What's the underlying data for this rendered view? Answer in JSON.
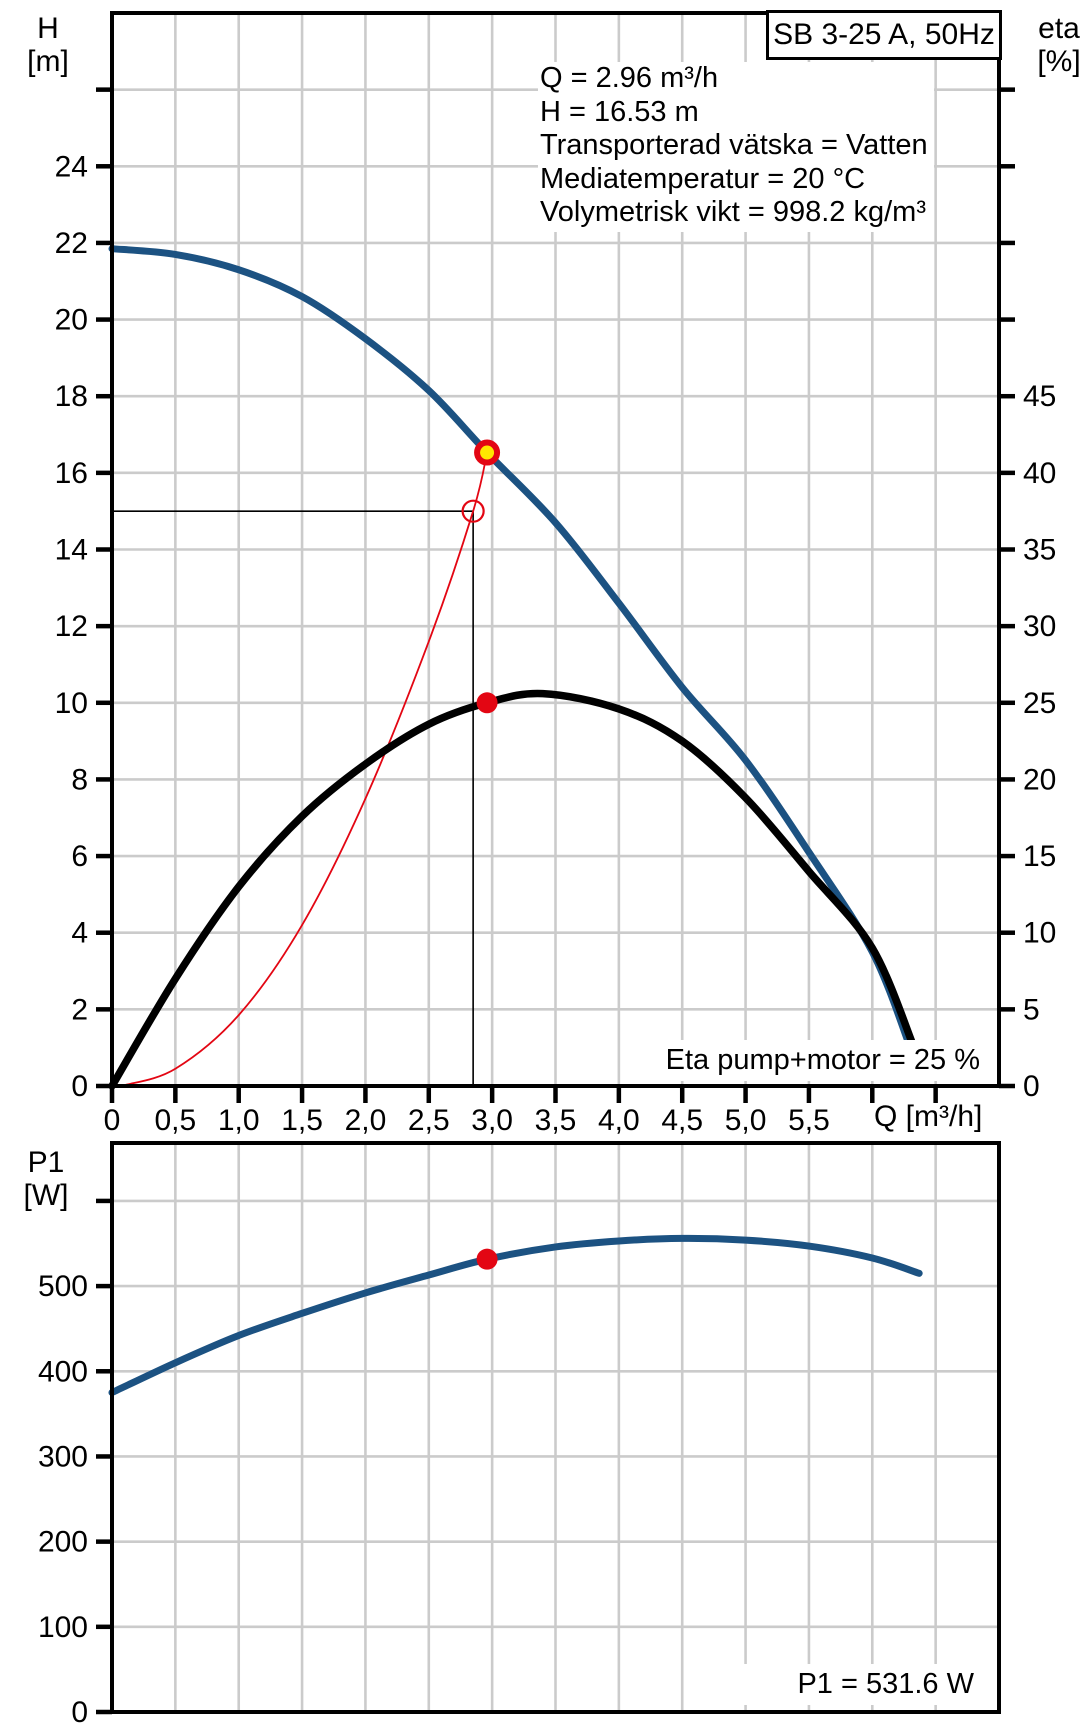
{
  "title_box": {
    "label": "SB 3-25 A, 50Hz"
  },
  "info": {
    "lines": [
      "Q = 2.96 m³/h",
      "H = 16.53 m",
      "Transporterad vätska = Vatten",
      "Mediatemperatur = 20 °C",
      "Volymetrisk vikt = 998.2 kg/m³"
    ]
  },
  "colors": {
    "curve_blue": "#1C5282",
    "curve_black": "#000000",
    "curve_red": "#E30613",
    "marker_yellow": "#FFE600",
    "grid": "#CBCBCB",
    "axis": "#000000"
  },
  "chart_data": [
    {
      "type": "line",
      "name": "pump-performance-chart",
      "title": "SB 3-25 A, 50Hz",
      "annotation": "Eta pump+motor = 25 %",
      "x": {
        "label": "Q [m³/h]",
        "min": 0,
        "max": 7,
        "grid_step": 0.5,
        "labeled_ticks": [
          0,
          0.5,
          1.0,
          1.5,
          2.0,
          2.5,
          3.0,
          3.5,
          4.0,
          4.5,
          5.0,
          5.5
        ],
        "tick_labels": [
          "0",
          "0,5",
          "1,0",
          "1,5",
          "2,0",
          "2,5",
          "3,0",
          "3,5",
          "4,0",
          "4,5",
          "5,0",
          "5,5"
        ],
        "unlabeled_ticks": [
          6.0,
          6.5
        ]
      },
      "y_left": {
        "title_line1": "H",
        "title_line2": "[m]",
        "label": "H [m]",
        "min": 0,
        "max": 28,
        "grid_step": 2,
        "tick_labels": [
          "0",
          "2",
          "4",
          "6",
          "8",
          "10",
          "12",
          "14",
          "16",
          "18",
          "20",
          "22",
          "24"
        ],
        "unlabeled_ticks": [
          26
        ]
      },
      "y_right": {
        "title_line1": "eta",
        "title_line2": "[%]",
        "label": "eta [%]",
        "min": 0,
        "max": 70,
        "grid_step": 5,
        "tick_labels": [
          "0",
          "5",
          "10",
          "15",
          "20",
          "25",
          "30",
          "35",
          "40",
          "45"
        ],
        "unlabeled_ticks": [
          50,
          55,
          60,
          65
        ]
      },
      "guides": {
        "h_value": 15.0,
        "q_value": 2.85
      },
      "series": [
        {
          "name": "system-curve",
          "axis": "left",
          "color": "#E30613",
          "width": 1.8,
          "points": [
            [
              0.1,
              0.02
            ],
            [
              0.5,
              0.45
            ],
            [
              1.0,
              1.85
            ],
            [
              1.5,
              4.2
            ],
            [
              2.0,
              7.5
            ],
            [
              2.5,
              11.6
            ],
            [
              2.85,
              15.0
            ],
            [
              2.96,
              16.53
            ]
          ]
        },
        {
          "name": "head-curve",
          "axis": "left",
          "color": "#1C5282",
          "width": 7,
          "points": [
            [
              0,
              21.85
            ],
            [
              0.5,
              21.7
            ],
            [
              1.0,
              21.3
            ],
            [
              1.5,
              20.6
            ],
            [
              2.0,
              19.5
            ],
            [
              2.5,
              18.15
            ],
            [
              2.96,
              16.53
            ],
            [
              3.5,
              14.7
            ],
            [
              4.0,
              12.6
            ],
            [
              4.5,
              10.4
            ],
            [
              5.0,
              8.5
            ],
            [
              5.5,
              6.1
            ],
            [
              6.0,
              3.5
            ],
            [
              6.3,
              1.0
            ]
          ]
        },
        {
          "name": "efficiency-curve",
          "axis": "right",
          "color": "#000000",
          "width": 7.5,
          "points": [
            [
              0,
              0
            ],
            [
              0.5,
              7
            ],
            [
              1.0,
              13
            ],
            [
              1.5,
              17.6
            ],
            [
              2.0,
              21
            ],
            [
              2.5,
              23.6
            ],
            [
              2.96,
              25
            ],
            [
              3.4,
              25.6
            ],
            [
              4.0,
              24.6
            ],
            [
              4.5,
              22.5
            ],
            [
              5.0,
              18.8
            ],
            [
              5.5,
              14
            ],
            [
              6.0,
              9
            ],
            [
              6.33,
              2.5
            ]
          ]
        }
      ],
      "markers": [
        {
          "name": "target-point-marker",
          "q": 2.85,
          "value": 15.0,
          "axis": "left",
          "style": "open-red-circle"
        },
        {
          "name": "efficiency-point-marker",
          "q": 2.96,
          "value": 25,
          "axis": "right",
          "style": "red-dot"
        },
        {
          "name": "duty-point-marker",
          "q": 2.96,
          "value": 16.53,
          "axis": "left",
          "style": "yellow-red-ring"
        }
      ]
    },
    {
      "type": "line",
      "name": "power-chart",
      "annotation": "P1 = 531.6 W",
      "x": {
        "label": "",
        "min": 0,
        "max": 7,
        "grid_step": 0.5,
        "labeled_ticks": [],
        "tick_labels": [],
        "unlabeled_ticks": []
      },
      "y_left": {
        "title_line1": "P1",
        "title_line2": "[W]",
        "label": "P1 [W]",
        "min": 0,
        "max": 668,
        "grid_step": 100,
        "tick_labels": [
          "0",
          "100",
          "200",
          "300",
          "400",
          "500"
        ],
        "unlabeled_ticks": [
          600
        ]
      },
      "series": [
        {
          "name": "p1-curve",
          "axis": "left",
          "color": "#1C5282",
          "width": 7,
          "points": [
            [
              0,
              375
            ],
            [
              0.5,
              410
            ],
            [
              1.0,
              442
            ],
            [
              1.5,
              468
            ],
            [
              2.0,
              492
            ],
            [
              2.5,
              513
            ],
            [
              2.96,
              531.6
            ],
            [
              3.5,
              546
            ],
            [
              4.0,
              553
            ],
            [
              4.5,
              556
            ],
            [
              5.0,
              554
            ],
            [
              5.5,
              547
            ],
            [
              6.0,
              533
            ],
            [
              6.37,
              515
            ]
          ]
        }
      ],
      "markers": [
        {
          "name": "power-point-marker",
          "q": 2.96,
          "value": 531.6,
          "axis": "left",
          "style": "red-dot"
        }
      ]
    }
  ]
}
